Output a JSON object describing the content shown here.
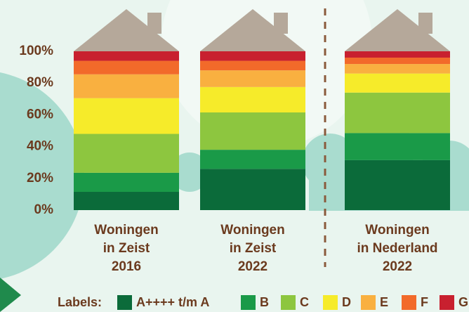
{
  "chart_data": {
    "type": "stacked_bar",
    "categories": [
      [
        "Woningen",
        "in Zeist",
        "2016"
      ],
      [
        "Woningen",
        "in Zeist",
        "2022"
      ],
      [
        "Woningen",
        "in Nederland",
        "2022"
      ]
    ],
    "legend_title": "Labels:",
    "series": [
      {
        "name": "A++++ t/m A",
        "color": "#0b6b3a",
        "values": [
          11.5,
          26,
          31.5
        ]
      },
      {
        "name": "B",
        "color": "#1a9a48",
        "values": [
          12,
          12,
          17
        ]
      },
      {
        "name": "C",
        "color": "#8dc63f",
        "values": [
          24.5,
          23.5,
          25.5
        ]
      },
      {
        "name": "D",
        "color": "#f6eb2a",
        "values": [
          22.5,
          16,
          12
        ]
      },
      {
        "name": "E",
        "color": "#f9b040",
        "values": [
          15,
          10.5,
          6
        ]
      },
      {
        "name": "F",
        "color": "#f26a2a",
        "values": [
          8.5,
          6,
          4
        ]
      },
      {
        "name": "G",
        "color": "#c8202f",
        "values": [
          6,
          6,
          4
        ]
      }
    ],
    "ylim": [
      0,
      100
    ],
    "yticks": [
      {
        "value": 0,
        "label": "0%"
      },
      {
        "value": 20,
        "label": "20%"
      },
      {
        "value": 40,
        "label": "40%"
      },
      {
        "value": 60,
        "label": "60%"
      },
      {
        "value": 80,
        "label": "80%"
      },
      {
        "value": 100,
        "label": "100%"
      }
    ]
  }
}
